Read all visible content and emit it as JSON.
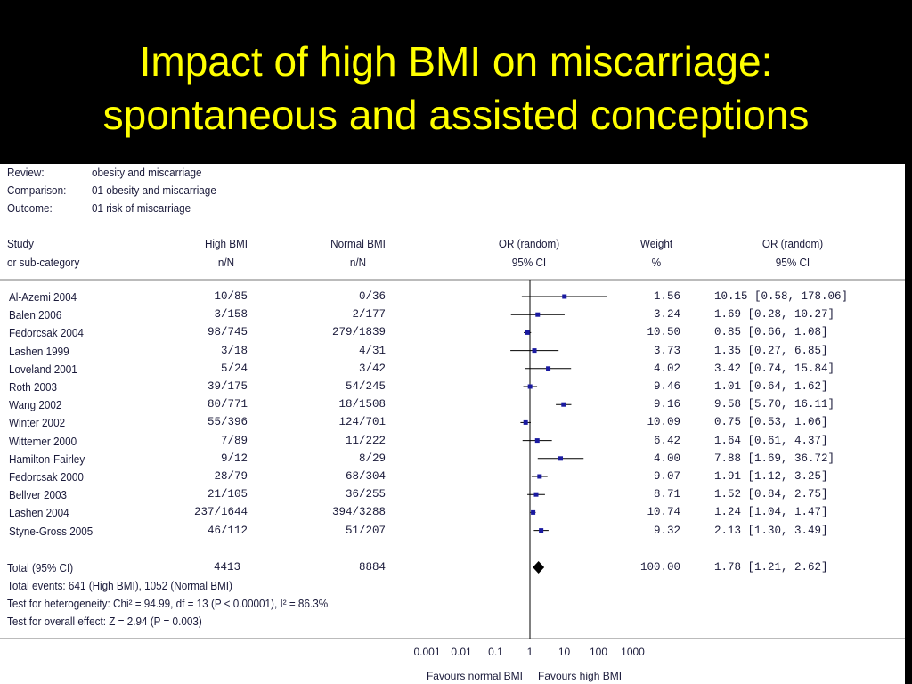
{
  "title": {
    "line1": "Impact of high BMI on miscarriage:",
    "line2": "spontaneous and assisted conceptions"
  },
  "header": {
    "review_label": "Review:",
    "review_value": "obesity and miscarriage",
    "comparison_label": "Comparison:",
    "comparison_value": "01 obesity and miscarriage",
    "outcome_label": "Outcome:",
    "outcome_value": "01 risk of miscarriage"
  },
  "columns": {
    "study": [
      "Study",
      "or sub-category"
    ],
    "high_bmi": [
      "High BMI",
      "n/N"
    ],
    "normal_bmi": [
      "Normal BMI",
      "n/N"
    ],
    "or_plot": [
      "OR (random)",
      "95% CI"
    ],
    "weight": [
      "Weight",
      "%"
    ],
    "or_ci": [
      "OR (random)",
      "95% CI"
    ]
  },
  "chart_data": {
    "type": "forest",
    "scale": "log",
    "x_ticks": [
      0.001,
      0.01,
      0.1,
      1,
      10,
      100,
      1000
    ],
    "x_tick_labels": [
      "0.001",
      "0.01",
      "0.1",
      "1",
      "10",
      "100",
      "1000"
    ],
    "xlabel_left": "Favours normal BMI",
    "xlabel_right": "Favours high BMI",
    "studies": [
      {
        "name": "Al-Azemi 2004",
        "high": "10/85",
        "normal": "0/36",
        "weight": "1.56",
        "ci_text": "10.15 [0.58, 178.06]",
        "or": 10.15,
        "lo": 0.58,
        "hi": 178.06
      },
      {
        "name": "Balen 2006",
        "high": "3/158",
        "normal": "2/177",
        "weight": "3.24",
        "ci_text": "1.69 [0.28, 10.27]",
        "or": 1.69,
        "lo": 0.28,
        "hi": 10.27
      },
      {
        "name": "Fedorcsak 2004",
        "high": "98/745",
        "normal": "279/1839",
        "weight": "10.50",
        "ci_text": "0.85 [0.66, 1.08]",
        "or": 0.85,
        "lo": 0.66,
        "hi": 1.08
      },
      {
        "name": "Lashen 1999",
        "high": "3/18",
        "normal": "4/31",
        "weight": "3.73",
        "ci_text": "1.35 [0.27, 6.85]",
        "or": 1.35,
        "lo": 0.27,
        "hi": 6.85
      },
      {
        "name": "Loveland 2001",
        "high": "5/24",
        "normal": "3/42",
        "weight": "4.02",
        "ci_text": "3.42 [0.74, 15.84]",
        "or": 3.42,
        "lo": 0.74,
        "hi": 15.84
      },
      {
        "name": "Roth 2003",
        "high": "39/175",
        "normal": "54/245",
        "weight": "9.46",
        "ci_text": "1.01 [0.64, 1.62]",
        "or": 1.01,
        "lo": 0.64,
        "hi": 1.62
      },
      {
        "name": "Wang 2002",
        "high": "80/771",
        "normal": "18/1508",
        "weight": "9.16",
        "ci_text": "9.58 [5.70, 16.11]",
        "or": 9.58,
        "lo": 5.7,
        "hi": 16.11
      },
      {
        "name": "Winter 2002",
        "high": "55/396",
        "normal": "124/701",
        "weight": "10.09",
        "ci_text": "0.75 [0.53, 1.06]",
        "or": 0.75,
        "lo": 0.53,
        "hi": 1.06
      },
      {
        "name": "Wittemer 2000",
        "high": "7/89",
        "normal": "11/222",
        "weight": "6.42",
        "ci_text": "1.64 [0.61, 4.37]",
        "or": 1.64,
        "lo": 0.61,
        "hi": 4.37
      },
      {
        "name": "Hamilton-Fairley",
        "high": "9/12",
        "normal": "8/29",
        "weight": "4.00",
        "ci_text": "7.88 [1.69, 36.72]",
        "or": 7.88,
        "lo": 1.69,
        "hi": 36.72
      },
      {
        "name": "Fedorcsak 2000",
        "high": "28/79",
        "normal": "68/304",
        "weight": "9.07",
        "ci_text": "1.91 [1.12, 3.25]",
        "or": 1.91,
        "lo": 1.12,
        "hi": 3.25
      },
      {
        "name": "Bellver 2003",
        "high": "21/105",
        "normal": "36/255",
        "weight": "8.71",
        "ci_text": "1.52 [0.84, 2.75]",
        "or": 1.52,
        "lo": 0.84,
        "hi": 2.75
      },
      {
        "name": "Lashen 2004",
        "high": "237/1644",
        "normal": "394/3288",
        "weight": "10.74",
        "ci_text": "1.24 [1.04, 1.47]",
        "or": 1.24,
        "lo": 1.04,
        "hi": 1.47
      },
      {
        "name": "Styne-Gross 2005",
        "high": "46/112",
        "normal": "51/207",
        "weight": "9.32",
        "ci_text": "2.13 [1.30, 3.49]",
        "or": 2.13,
        "lo": 1.3,
        "hi": 3.49
      }
    ],
    "total": {
      "name": "Total (95% CI)",
      "high": "4413",
      "normal": "8884",
      "weight": "100.00",
      "ci_text": "1.78 [1.21, 2.62]",
      "or": 1.78,
      "lo": 1.21,
      "hi": 2.62
    },
    "footer": [
      "Total events: 641 (High BMI), 1052 (Normal BMI)",
      "Test for heterogeneity: Chi² = 94.99, df = 13 (P < 0.00001), I² = 86.3%",
      "Test for overall effect: Z = 2.94 (P = 0.003)"
    ],
    "colors": {
      "marker": "#1a1aa0",
      "line": "#000000",
      "text": "#1a1a3a",
      "title": "#ffff00"
    }
  }
}
